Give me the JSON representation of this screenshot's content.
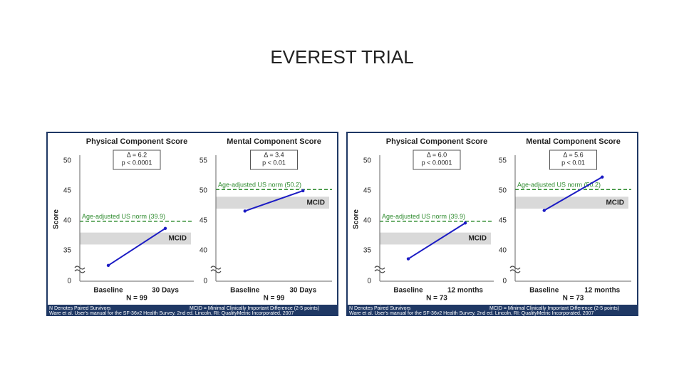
{
  "title": "EVEREST TRIAL",
  "panels": [
    {
      "footer": [
        "N Denotes Paired Survivors",
        "MCID = Minimal Clinically Important Difference (2-5 points)",
        "Ware et al. User's manual for the SF-36v2 Health Survey, 2nd ed. Lincoln, RI: QualityMetric Incorporated, 2007"
      ]
    },
    {
      "footer": [
        "N Denotes Paired Survivors",
        "MCID = Minimal Clinically Important Difference (2-5 points)",
        "Ware et al. User's manual for the SF-36v2 Health Survey, 2nd ed. Lincoln, RI: QualityMetric Incorporated, 2007"
      ]
    }
  ],
  "chart_data": [
    {
      "type": "line",
      "title": "Physical Component Score",
      "annotations": [
        "Δ = 6.2",
        "p < 0.0001"
      ],
      "ylabel": "Score",
      "categories": [
        "Baseline",
        "30 Days"
      ],
      "values": [
        32.5,
        38.7
      ],
      "color": "#1c1cc4",
      "n_label": "N = 99",
      "norm": {
        "value": 39.9,
        "label": "Age-adjusted US norm (39.9)",
        "color": "#2e8b2e"
      },
      "mcid": {
        "range": [
          36,
          38
        ],
        "label": "MCID",
        "color": "#d9d9d9"
      },
      "ylim": [
        0,
        50
      ],
      "yticks": [
        0,
        35,
        40,
        45,
        50
      ],
      "ybreak": [
        0,
        32
      ]
    },
    {
      "type": "line",
      "title": "Mental Component Score",
      "annotations": [
        "Δ = 3.4",
        "p < 0.01"
      ],
      "categories": [
        "Baseline",
        "30 Days"
      ],
      "values": [
        46.6,
        50.0
      ],
      "color": "#1c1cc4",
      "n_label": "N = 99",
      "norm": {
        "value": 50.2,
        "label": "Age-adjusted US norm (50.2)",
        "color": "#2e8b2e"
      },
      "mcid": {
        "range": [
          47,
          49
        ],
        "label": "MCID",
        "color": "#d9d9d9"
      },
      "ylim": [
        0,
        55
      ],
      "yticks": [
        0,
        40,
        45,
        50,
        55
      ],
      "ybreak": [
        0,
        37
      ]
    },
    {
      "type": "line",
      "title": "Physical Component Score",
      "annotations": [
        "Δ = 6.0",
        "p < 0.0001"
      ],
      "ylabel": "Score",
      "categories": [
        "Baseline",
        "12 months"
      ],
      "values": [
        33.6,
        39.6
      ],
      "color": "#1c1cc4",
      "n_label": "N = 73",
      "norm": {
        "value": 39.9,
        "label": "Age-adjusted US norm (39.9)",
        "color": "#2e8b2e"
      },
      "mcid": {
        "range": [
          36,
          38
        ],
        "label": "MCID",
        "color": "#d9d9d9"
      },
      "ylim": [
        0,
        50
      ],
      "yticks": [
        0,
        35,
        40,
        45,
        50
      ],
      "ybreak": [
        0,
        32
      ]
    },
    {
      "type": "line",
      "title": "Mental Component Score",
      "annotations": [
        "Δ = 5.6",
        "p < 0.01"
      ],
      "categories": [
        "Baseline",
        "12 months"
      ],
      "values": [
        46.7,
        52.3
      ],
      "color": "#1c1cc4",
      "n_label": "N = 73",
      "norm": {
        "value": 50.2,
        "label": "Age-adjusted US norm (50.2)",
        "color": "#2e8b2e"
      },
      "mcid": {
        "range": [
          47,
          49
        ],
        "label": "MCID",
        "color": "#d9d9d9"
      },
      "ylim": [
        0,
        55
      ],
      "yticks": [
        0,
        40,
        45,
        50,
        55
      ],
      "ybreak": [
        0,
        37
      ]
    }
  ]
}
